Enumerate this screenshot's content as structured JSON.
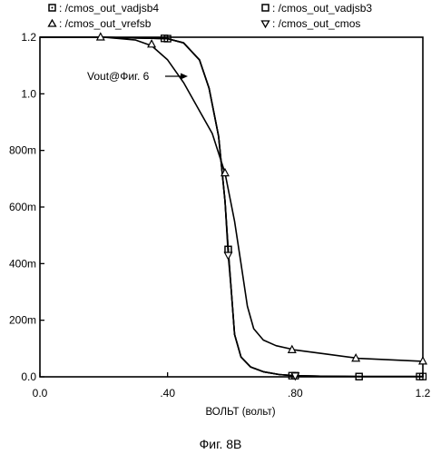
{
  "chart_data": {
    "type": "line",
    "title": "",
    "xlabel": "ВОЛЬТ (вольт)",
    "ylabel": "",
    "xlim": [
      0,
      1.2
    ],
    "ylim": [
      0,
      1.2
    ],
    "x_ticks": [
      {
        "value": 0.0,
        "label": "0.0"
      },
      {
        "value": 0.4,
        "label": ".40"
      },
      {
        "value": 0.8,
        "label": ".80"
      },
      {
        "value": 1.2,
        "label": "1.2"
      }
    ],
    "y_ticks": [
      {
        "value": 0,
        "label": "0.0"
      },
      {
        "value": 0.2,
        "label": "200m"
      },
      {
        "value": 0.4,
        "label": "400m"
      },
      {
        "value": 0.6,
        "label": "600m"
      },
      {
        "value": 0.8,
        "label": "800m"
      },
      {
        "value": 1.0,
        "label": "1.0"
      },
      {
        "value": 1.2,
        "label": "1.2"
      }
    ],
    "grid": false,
    "legend_position": "top",
    "series": [
      {
        "name": "/cmos_out_vadjsb4",
        "marker": "square-dot",
        "group": "steep",
        "x": [
          0.0,
          0.2,
          0.4,
          0.45,
          0.5,
          0.53,
          0.56,
          0.58,
          0.59,
          0.6,
          0.61,
          0.63,
          0.66,
          0.7,
          0.75,
          0.8,
          0.9,
          1.0,
          1.2
        ],
        "y": [
          1.2,
          1.2,
          1.195,
          1.18,
          1.12,
          1.02,
          0.85,
          0.62,
          0.45,
          0.3,
          0.15,
          0.07,
          0.035,
          0.018,
          0.008,
          0.004,
          0.002,
          0.001,
          0.001
        ],
        "markers_x": [
          0.4,
          0.59,
          0.8,
          1.0,
          1.2
        ],
        "markers_y": [
          1.195,
          0.45,
          0.004,
          0.001,
          0.001
        ]
      },
      {
        "name": "/cmos_out_vadjsb3",
        "marker": "square",
        "group": "steep",
        "x": [
          0.0,
          0.2,
          0.4,
          0.45,
          0.5,
          0.53,
          0.56,
          0.58,
          0.59,
          0.6,
          0.61,
          0.63,
          0.66,
          0.7,
          0.75,
          0.8,
          0.9,
          1.0,
          1.2
        ],
        "y": [
          1.2,
          1.2,
          1.195,
          1.18,
          1.12,
          1.02,
          0.85,
          0.62,
          0.45,
          0.3,
          0.15,
          0.07,
          0.035,
          0.018,
          0.008,
          0.004,
          0.002,
          0.001,
          0.001
        ],
        "markers_x": [
          0.39,
          0.59,
          0.79,
          1.0,
          1.19
        ],
        "markers_y": [
          1.196,
          0.45,
          0.004,
          0.001,
          0.001
        ]
      },
      {
        "name": "/cmos_out_vrefsb",
        "marker": "triangle-up",
        "group": "shallow",
        "x": [
          0.0,
          0.2,
          0.3,
          0.35,
          0.4,
          0.45,
          0.5,
          0.54,
          0.58,
          0.61,
          0.63,
          0.65,
          0.67,
          0.7,
          0.74,
          0.8,
          0.9,
          1.0,
          1.2
        ],
        "y": [
          1.2,
          1.2,
          1.19,
          1.17,
          1.12,
          1.04,
          0.94,
          0.86,
          0.72,
          0.55,
          0.4,
          0.25,
          0.17,
          0.13,
          0.11,
          0.095,
          0.08,
          0.065,
          0.055
        ],
        "markers_x": [
          0.19,
          0.35,
          0.58,
          0.79,
          0.99,
          1.2
        ],
        "markers_y": [
          1.2,
          1.175,
          0.72,
          0.095,
          0.065,
          0.055
        ]
      },
      {
        "name": "/cmos_out_cmos",
        "marker": "triangle-down",
        "group": "steep",
        "x": [
          0.0,
          0.2,
          0.4,
          0.45,
          0.5,
          0.53,
          0.56,
          0.58,
          0.59,
          0.6,
          0.61,
          0.63,
          0.66,
          0.7,
          0.75,
          0.8,
          0.9,
          1.0,
          1.2
        ],
        "y": [
          1.2,
          1.2,
          1.195,
          1.18,
          1.12,
          1.02,
          0.85,
          0.62,
          0.43,
          0.3,
          0.15,
          0.07,
          0.035,
          0.018,
          0.008,
          0.004,
          0.002,
          0.001,
          0.001
        ],
        "markers_x": [
          0.59,
          0.8
        ],
        "markers_y": [
          0.43,
          0.004
        ]
      }
    ],
    "annotation": {
      "text": "Vout@Фиг. 6",
      "target_x": 0.5,
      "target_y": 1.06
    },
    "caption": "Фиг. 8B"
  }
}
